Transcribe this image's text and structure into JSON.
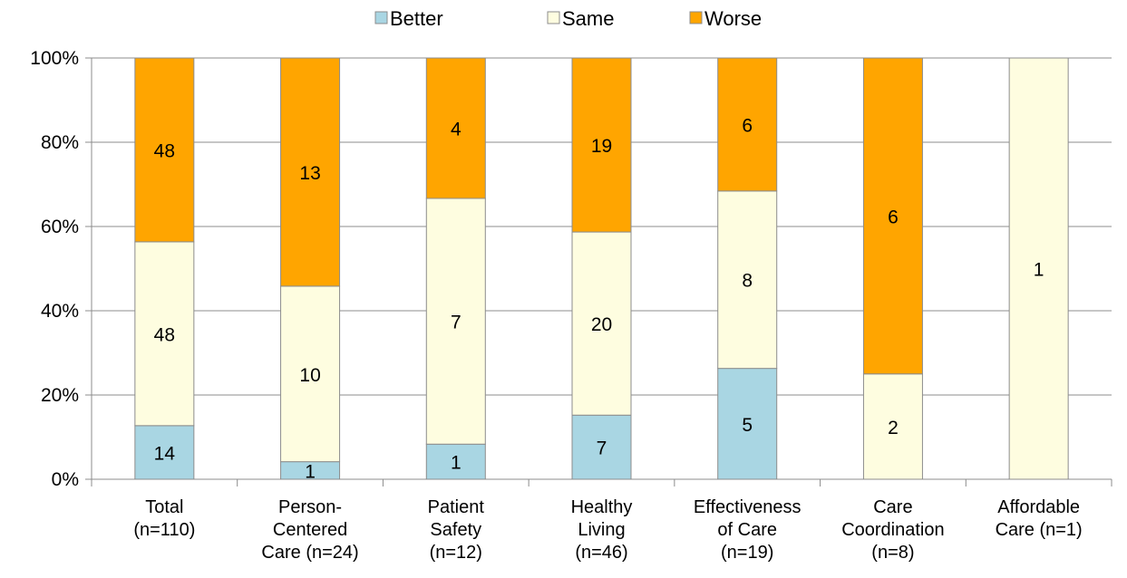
{
  "chart_data": {
    "type": "bar",
    "stacked": "percent",
    "categories": [
      [
        "Total",
        "(n=110)"
      ],
      [
        "Person-",
        "Centered",
        "Care (n=24)"
      ],
      [
        "Patient",
        "Safety",
        "(n=12)"
      ],
      [
        "Healthy",
        "Living",
        "(n=46)"
      ],
      [
        "Effectiveness",
        "of Care",
        "(n=19)"
      ],
      [
        "Care",
        "Coordination",
        "(n=8)"
      ],
      [
        "Affordable",
        "Care (n=1)"
      ]
    ],
    "series": [
      {
        "name": "Better",
        "color": "#a9d6e3",
        "values": [
          14,
          1,
          1,
          7,
          5,
          0,
          0
        ]
      },
      {
        "name": "Same",
        "color": "#fefde0",
        "values": [
          48,
          10,
          7,
          20,
          8,
          2,
          1
        ]
      },
      {
        "name": "Worse",
        "color": "#ffa500",
        "values": [
          48,
          13,
          4,
          19,
          6,
          6,
          0
        ]
      }
    ],
    "y_ticks": [
      "0%",
      "20%",
      "40%",
      "60%",
      "80%",
      "100%"
    ],
    "ylim": [
      0,
      100
    ],
    "grid": true,
    "legend": "top-center",
    "title": "",
    "xlabel": "",
    "ylabel": ""
  }
}
